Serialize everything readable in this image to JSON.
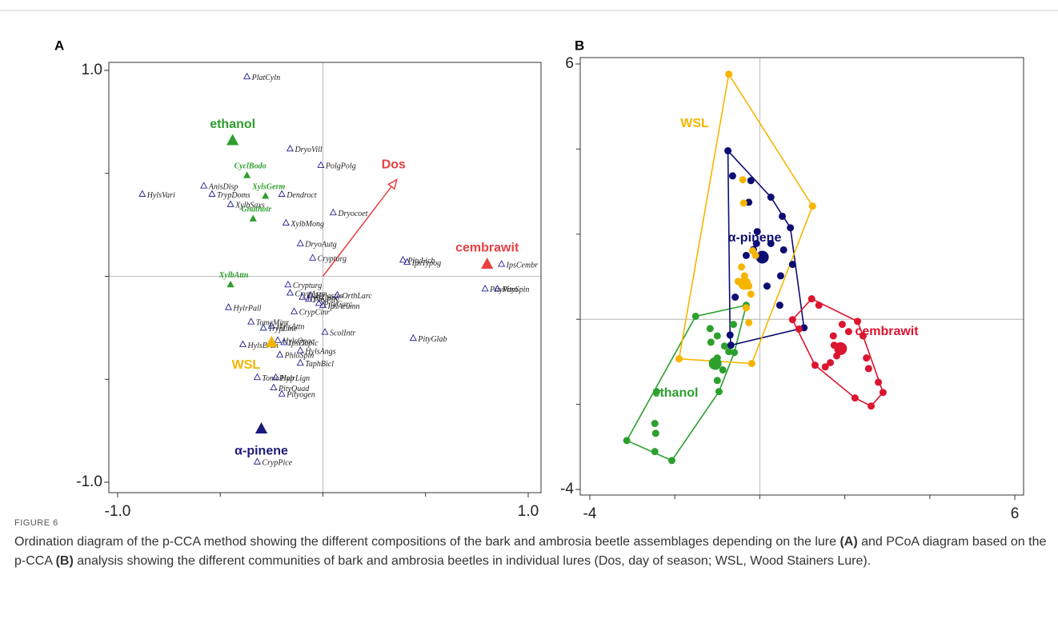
{
  "figure": {
    "label": "FIGURE 6",
    "caption": [
      "Ordination diagram of the p-CCA method showing the different compositions of the bark and ambrosia beetle assemblages depending on the lure ",
      "(A)",
      " and PCoA diagram based on the p-CCA ",
      "(B)",
      " analysis showing the different communities of bark and ambrosia beetles in individual lures (Dos, day of season; WSL, Wood Stainers Lure)."
    ]
  },
  "chart_data": [
    {
      "type": "biplot",
      "panel": "A",
      "xlim": [
        -1,
        1
      ],
      "ylim": [
        -1,
        1
      ],
      "xticks": [
        {
          "value": -1,
          "label": "-1.0"
        },
        {
          "value": 1,
          "label": "1.0"
        }
      ],
      "yticks": [
        {
          "value": -1,
          "label": "-1.0"
        },
        {
          "value": 1,
          "label": "1.0"
        }
      ],
      "minor_xticks": [
        -0.5,
        0,
        0.5
      ],
      "minor_yticks": [
        -0.5,
        0,
        0.5
      ],
      "series": [
        {
          "color": "#23238f",
          "marker": "open-triangle",
          "labels": [
            "PlatCyln",
            "DryoVill",
            "PolgPolg",
            "AnisDisp",
            "HylsVari",
            "TrypDoms",
            "Dendroct",
            "Dryocoet",
            "XylbSaxs",
            "XylbMong",
            "DryoAutg",
            "Crypturg",
            "PityLich",
            "IpsTypog",
            "IpsCembr",
            "PityVorn",
            "PitySpin",
            "Crypturg",
            "Hylastes",
            "CrypAspr",
            "HylsCunc",
            "PityPity",
            "PityCarc",
            "OrthLarc",
            "IpsAcumn",
            "HylrPall",
            "TomcMinr",
            "TrypLine",
            "CrypCinr",
            "HylsAttn",
            "ScolIntr",
            "HylsBrun",
            "HylsOpac",
            "IpsDuplc",
            "HylsAngs",
            "PityGlab",
            "PhloSpin",
            "TaphBicl",
            "TomcPinp",
            "HylrLign",
            "PityQuad",
            "Pityogen",
            "CrypPice"
          ],
          "x": [
            -0.37,
            -0.16,
            -0.01,
            -0.58,
            -0.88,
            -0.54,
            -0.2,
            0.05,
            -0.45,
            -0.18,
            -0.11,
            -0.05,
            0.39,
            0.41,
            0.87,
            0.79,
            0.85,
            -0.17,
            -0.06,
            -0.16,
            -0.1,
            -0.07,
            -0.02,
            0.07,
            0.0,
            -0.46,
            -0.35,
            -0.29,
            -0.14,
            -0.25,
            0.01,
            -0.39,
            -0.22,
            -0.19,
            -0.11,
            0.44,
            -0.21,
            -0.11,
            -0.32,
            -0.23,
            -0.24,
            -0.2,
            -0.32
          ],
          "y": [
            0.97,
            0.62,
            0.54,
            0.44,
            0.4,
            0.4,
            0.4,
            0.31,
            0.35,
            0.26,
            0.16,
            0.09,
            0.08,
            0.07,
            0.06,
            -0.06,
            -0.06,
            -0.04,
            -0.09,
            -0.08,
            -0.1,
            -0.11,
            -0.13,
            -0.09,
            -0.14,
            -0.15,
            -0.22,
            -0.25,
            -0.17,
            -0.24,
            -0.27,
            -0.33,
            -0.31,
            -0.32,
            -0.36,
            -0.3,
            -0.38,
            -0.42,
            -0.49,
            -0.49,
            -0.54,
            -0.57,
            -0.9
          ]
        },
        {
          "color": "#2e9e2e",
          "marker": "triangle",
          "labels": [
            "CyclBodo",
            "XylsGerm",
            "Gnathotr",
            "XylbAttn"
          ],
          "x": [
            -0.37,
            -0.28,
            -0.34,
            -0.45
          ],
          "y": [
            0.49,
            0.39,
            0.28,
            -0.04
          ]
        }
      ],
      "centroids": {
        "labels": [
          "ethanol",
          "cembrawit",
          "WSL",
          "α-pinene"
        ],
        "colors": [
          "#2e9e2e",
          "#e84040",
          "#f5b400",
          "#1a1a7a"
        ],
        "x": [
          -0.44,
          0.8,
          -0.25,
          -0.3
        ],
        "y": [
          0.66,
          0.06,
          -0.32,
          -0.74
        ]
      },
      "arrows": [
        {
          "label": "Dos",
          "color": "#e84040",
          "x": 0.36,
          "y": 0.47
        }
      ]
    },
    {
      "type": "scatter-hull",
      "panel": "B",
      "xlim": [
        -4,
        6
      ],
      "ylim": [
        -4,
        6
      ],
      "xticks": [
        -4,
        6
      ],
      "yticks": [
        -4,
        6
      ],
      "minor_xticks": [
        -2,
        0,
        2,
        4
      ],
      "minor_yticks": [
        -2,
        0,
        2,
        4
      ],
      "series": [
        {
          "name": "ethanol",
          "color": "#2ca02c",
          "x": [
            -3.13,
            -1.51,
            -2.07,
            -2.47,
            -2.45,
            -2.47,
            -2.43,
            -1.17,
            -1.0,
            -1.15,
            -0.83,
            -0.73,
            -1.0,
            -1.05,
            -0.87,
            -1.0,
            -0.96,
            -0.6,
            -0.62,
            -0.32
          ],
          "y": [
            -2.85,
            0.07,
            -3.32,
            -3.11,
            -2.68,
            -2.45,
            -1.7,
            -0.22,
            -0.39,
            -0.54,
            -0.63,
            -0.76,
            -0.91,
            -1.04,
            -1.19,
            -1.44,
            -1.7,
            -0.78,
            -0.12,
            0.33
          ],
          "centroid_x": -1.05,
          "centroid_y": -1.04
        },
        {
          "name": "α-pinene",
          "color": "#0d0d73",
          "x": [
            -0.75,
            -0.64,
            -0.21,
            0.26,
            -0.26,
            0.53,
            0.72,
            -0.06,
            0.26,
            -0.08,
            -0.15,
            -0.32,
            0.56,
            0.77,
            0.49,
            0.17,
            0.47,
            1.04,
            -0.68,
            -0.7,
            -0.58
          ],
          "y": [
            3.96,
            3.37,
            3.26,
            2.87,
            2.75,
            2.42,
            2.15,
            2.06,
            1.78,
            1.78,
            1.64,
            1.5,
            1.63,
            1.29,
            1.02,
            0.78,
            0.33,
            -0.2,
            -0.61,
            -0.37,
            0.52
          ],
          "centroid_x": 0.06,
          "centroid_y": 1.46
        },
        {
          "name": "WSL",
          "color": "#f7b500",
          "x": [
            -0.73,
            1.24,
            -0.4,
            -0.38,
            -0.17,
            -0.1,
            -0.43,
            -0.36,
            -0.51,
            -0.26,
            -0.21,
            -0.32,
            -0.26,
            -0.19,
            -1.9
          ],
          "y": [
            5.76,
            2.66,
            3.28,
            2.73,
            1.61,
            1.5,
            1.23,
            1.02,
            0.89,
            0.78,
            0.59,
            0.27,
            -0.08,
            -1.04,
            -0.93
          ],
          "centroid_x": -0.36,
          "centroid_y": 0.84
        },
        {
          "name": "cembrawit",
          "color": "#dc1530",
          "x": [
            1.22,
            1.39,
            0.77,
            0.92,
            2.3,
            1.94,
            2.09,
            1.73,
            2.43,
            1.75,
            1.81,
            2.51,
            1.66,
            1.3,
            1.54,
            2.56,
            2.79,
            2.9,
            2.24,
            2.62
          ],
          "y": [
            0.48,
            0.33,
            -0.01,
            -0.23,
            -0.05,
            -0.12,
            -0.29,
            -0.39,
            -0.39,
            -0.61,
            -0.86,
            -0.91,
            -1.02,
            -1.08,
            -1.12,
            -1.16,
            -1.48,
            -1.72,
            -1.85,
            -2.04
          ],
          "centroid_x": 1.9,
          "centroid_y": -0.69
        }
      ]
    }
  ]
}
